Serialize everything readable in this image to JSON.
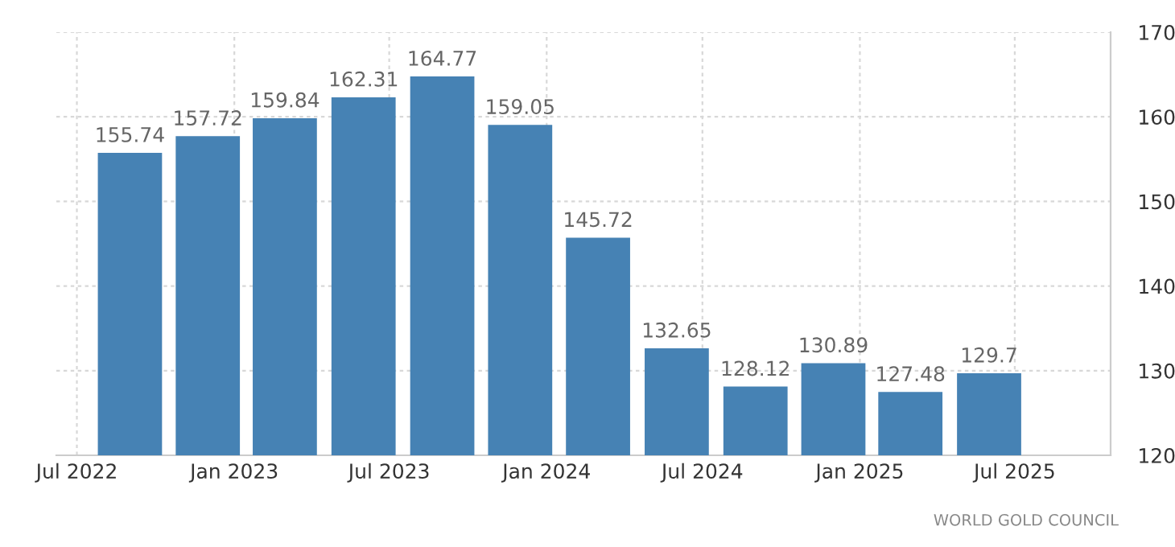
{
  "chart_data": {
    "type": "bar",
    "x": [
      "2022-09",
      "2022-12",
      "2023-03",
      "2023-06",
      "2023-09",
      "2023-12",
      "2024-03",
      "2024-06",
      "2024-09",
      "2024-12",
      "2025-03",
      "2025-06"
    ],
    "values": [
      155.74,
      157.72,
      159.84,
      162.31,
      164.77,
      159.05,
      145.72,
      132.65,
      128.12,
      130.89,
      127.48,
      129.7
    ],
    "color": "#4682b4",
    "data_labels": true,
    "xlim": [
      "2022-06-07",
      "2025-10-21"
    ],
    "xticks": [
      {
        "value": "2022-07-01",
        "label": "Jul 2022"
      },
      {
        "value": "2023-01-01",
        "label": "Jan 2023"
      },
      {
        "value": "2023-07-01",
        "label": "Jul 2023"
      },
      {
        "value": "2024-01-01",
        "label": "Jan 2024"
      },
      {
        "value": "2024-07-01",
        "label": "Jul 2024"
      },
      {
        "value": "2025-01-01",
        "label": "Jan 2025"
      },
      {
        "value": "2025-07-01",
        "label": "Jul 2025"
      }
    ],
    "ylim": [
      120,
      170
    ],
    "yticks": [
      120,
      130,
      140,
      150,
      160,
      170
    ],
    "grid": true,
    "annotations": [
      "WORLD GOLD COUNCIL"
    ]
  }
}
